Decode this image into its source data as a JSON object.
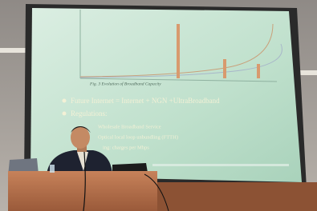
{
  "slide": {
    "figure_caption": "Fig. 3 Evolution of Broadband Capacity",
    "bullets": [
      "Future Internet = Internet + NGN +UltraBroadband",
      "Regulations:"
    ],
    "sub_bullets": [
      "Wholesale Broadband Service",
      "Optical local loop unbundling (FTTH)",
      "ing: charges per Mbps"
    ]
  }
}
